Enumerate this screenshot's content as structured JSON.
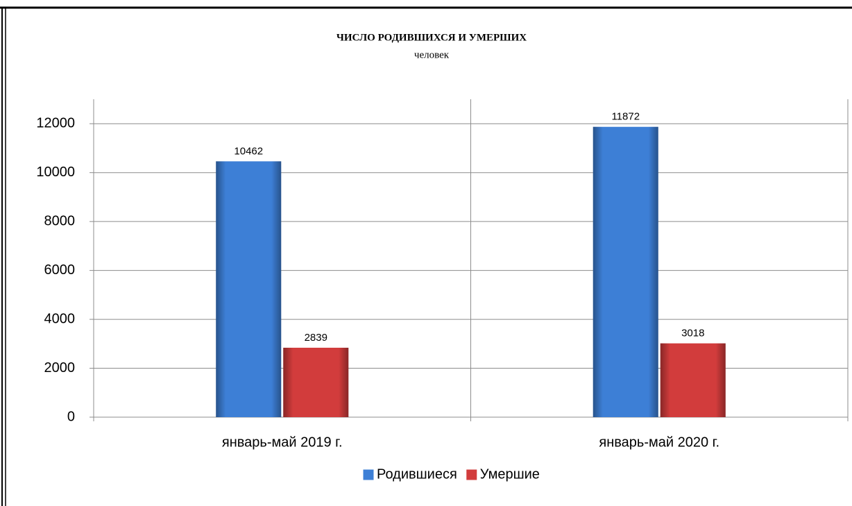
{
  "chart_data": {
    "type": "bar",
    "title": "ЧИСЛО РОДИВШИХСЯ И УМЕРШИХ",
    "subtitle": "человек",
    "categories": [
      "январь-май 2019 г.",
      "январь-май 2020 г."
    ],
    "series": [
      {
        "name": "Родившиеся",
        "color": "#3d7fd6",
        "values": [
          10462,
          11872
        ]
      },
      {
        "name": "Умершие",
        "color": "#d23c3c",
        "values": [
          2839,
          3018
        ]
      }
    ],
    "ylim": [
      0,
      13000
    ],
    "yticks": [
      0,
      2000,
      4000,
      6000,
      8000,
      10000,
      12000
    ],
    "grid": true,
    "legend": "bottom"
  }
}
